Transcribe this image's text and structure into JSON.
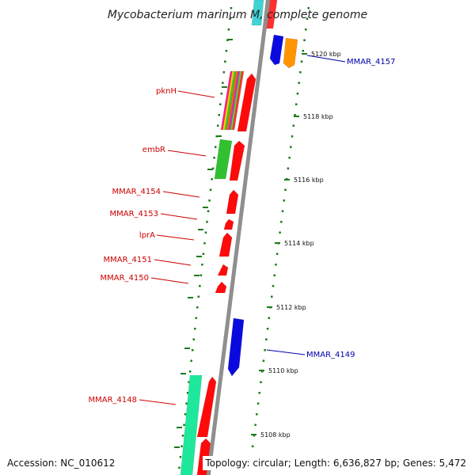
{
  "title": "Mycobacterium marinum M, complete genome",
  "footer": {
    "accession": "Accession: NC_010612",
    "topology": "Topology: circular; Length: 6,636,827 bp; Genes: 5,472"
  },
  "colors": {
    "backbone": "#8c8c8c",
    "tick_dots": "#1a7a1a",
    "label_forward": "#cc0000",
    "label_reverse": "#0000aa"
  },
  "ticks": [
    {
      "label": "5120 kbp",
      "kbp": 5120
    },
    {
      "label": "5118 kbp",
      "kbp": 5118
    },
    {
      "label": "5116 kbp",
      "kbp": 5116
    },
    {
      "label": "5114 kbp",
      "kbp": 5114
    },
    {
      "label": "5112 kbp",
      "kbp": 5112
    },
    {
      "label": "5110 kbp",
      "kbp": 5110
    },
    {
      "label": "5108 kbp",
      "kbp": 5108
    }
  ],
  "gene_labels": [
    {
      "name": "pknH",
      "side": "left"
    },
    {
      "name": "embR",
      "side": "left"
    },
    {
      "name": "MMAR_4154",
      "side": "left"
    },
    {
      "name": "MMAR_4153",
      "side": "left"
    },
    {
      "name": "lprA",
      "side": "left"
    },
    {
      "name": "MMAR_4151",
      "side": "left"
    },
    {
      "name": "MMAR_4150",
      "side": "left"
    },
    {
      "name": "MMAR_4148",
      "side": "left"
    },
    {
      "name": "MMAR_4157",
      "side": "right"
    },
    {
      "name": "MMAR_4149",
      "side": "right"
    }
  ]
}
